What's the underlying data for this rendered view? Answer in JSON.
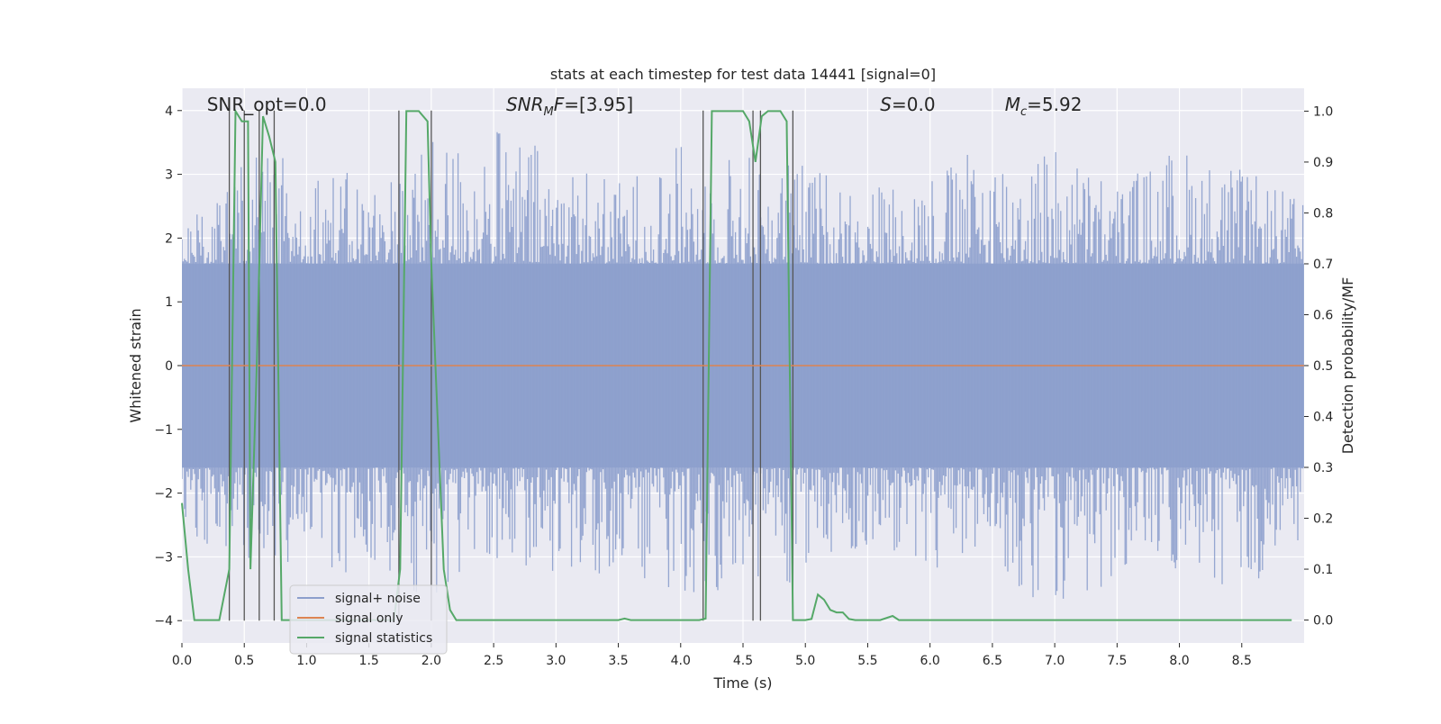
{
  "chart_data": {
    "type": "line",
    "title": "stats at each timestep for test data 14441 [signal=0]",
    "xlabel": "Time (s)",
    "ylabel": "Whitened strain",
    "ylabel_right": "Detection probability/MF",
    "xlim": [
      0.0,
      9.0
    ],
    "ylim": [
      -4.35,
      4.35
    ],
    "ylim_right": [
      -0.045,
      1.045
    ],
    "x_ticks": [
      0.0,
      0.5,
      1.0,
      1.5,
      2.0,
      2.5,
      3.0,
      3.5,
      4.0,
      4.5,
      5.0,
      5.5,
      6.0,
      6.5,
      7.0,
      7.5,
      8.0,
      8.5
    ],
    "x_tick_labels": [
      "0.0",
      "0.5",
      "1.0",
      "1.5",
      "2.0",
      "2.5",
      "3.0",
      "3.5",
      "4.0",
      "4.5",
      "5.0",
      "5.5",
      "6.0",
      "6.5",
      "7.0",
      "7.5",
      "8.0",
      "8.5"
    ],
    "y_ticks": [
      -4,
      -3,
      -2,
      -1,
      0,
      1,
      2,
      3,
      4
    ],
    "y_tick_labels": [
      "−4",
      "−3",
      "−2",
      "−1",
      "0",
      "1",
      "2",
      "3",
      "4"
    ],
    "y_ticks_right": [
      0.0,
      0.1,
      0.2,
      0.3,
      0.4,
      0.5,
      0.6,
      0.7,
      0.8,
      0.9,
      1.0
    ],
    "y_tick_labels_right": [
      "0.0",
      "0.1",
      "0.2",
      "0.3",
      "0.4",
      "0.5",
      "0.6",
      "0.7",
      "0.8",
      "0.9",
      "1.0"
    ],
    "grid": true,
    "legend_position": "lower-left",
    "annotations": [
      {
        "text": "SNR_opt=0.0",
        "x": 0.2,
        "y": 4.0
      },
      {
        "text": "SNR_MF=[3.95]",
        "x": 2.6,
        "y": 4.0
      },
      {
        "text": "S=0.0",
        "x": 5.6,
        "y": 4.0
      },
      {
        "text": "M_c=5.92",
        "x": 6.6,
        "y": 4.0
      }
    ],
    "noise_envelope": {
      "x": [
        0.0,
        0.5,
        1.0,
        1.5,
        2.0,
        2.5,
        3.0,
        3.5,
        4.0,
        4.5,
        5.0,
        5.5,
        6.0,
        6.5,
        7.0,
        7.5,
        8.0,
        8.5,
        9.0
      ],
      "upper": [
        2.4,
        3.3,
        3.3,
        2.9,
        3.5,
        3.8,
        3.4,
        2.9,
        3.5,
        3.4,
        3.2,
        2.9,
        3.1,
        3.5,
        3.5,
        2.9,
        3.5,
        3.1,
        2.6
      ],
      "lower": [
        -2.6,
        -3.2,
        -3.2,
        -3.3,
        -3.8,
        -3.0,
        -3.4,
        -3.2,
        -3.6,
        -3.5,
        -3.4,
        -2.8,
        -3.2,
        -3.2,
        -4.0,
        -3.4,
        -3.2,
        -3.9,
        -2.9
      ],
      "core": 1.6
    },
    "series": [
      {
        "name": "signal+ noise",
        "color": "#8c9fcc",
        "style": "noise"
      },
      {
        "name": "signal only",
        "color": "#dd8452",
        "x": [
          0.0,
          9.0
        ],
        "y": [
          0.0,
          0.0
        ]
      },
      {
        "name": "signal statistics",
        "color": "#55a868",
        "axis": "right",
        "x": [
          0.0,
          0.05,
          0.1,
          0.2,
          0.3,
          0.38,
          0.43,
          0.48,
          0.5,
          0.53,
          0.55,
          0.6,
          0.65,
          0.7,
          0.75,
          0.8,
          1.7,
          1.75,
          1.8,
          1.9,
          1.97,
          2.0,
          2.05,
          2.1,
          2.15,
          2.2,
          3.5,
          3.55,
          3.6,
          4.15,
          4.2,
          4.25,
          4.5,
          4.55,
          4.6,
          4.65,
          4.7,
          4.8,
          4.85,
          4.9,
          4.95,
          5.0,
          5.05,
          5.1,
          5.15,
          5.2,
          5.25,
          5.3,
          5.35,
          5.4,
          5.6,
          5.7,
          5.75,
          8.9
        ],
        "y": [
          0.23,
          0.1,
          0.0,
          0.0,
          0.0,
          0.1,
          1.0,
          0.98,
          0.98,
          0.98,
          0.1,
          0.5,
          0.99,
          0.95,
          0.9,
          0.0,
          0.0,
          0.1,
          1.0,
          1.0,
          0.98,
          0.7,
          0.4,
          0.1,
          0.02,
          0.0,
          0.0,
          0.003,
          0.0,
          0.0,
          0.003,
          1.0,
          1.0,
          0.98,
          0.9,
          0.99,
          1.0,
          1.0,
          0.98,
          0.0,
          0.0,
          0.0,
          0.002,
          0.05,
          0.04,
          0.02,
          0.015,
          0.015,
          0.002,
          0.0,
          0.0,
          0.008,
          0.0,
          0.0
        ]
      }
    ],
    "vlines": [
      0.38,
      0.5,
      0.62,
      0.74,
      1.74,
      2.0,
      4.18,
      4.58,
      4.64,
      4.9
    ]
  }
}
